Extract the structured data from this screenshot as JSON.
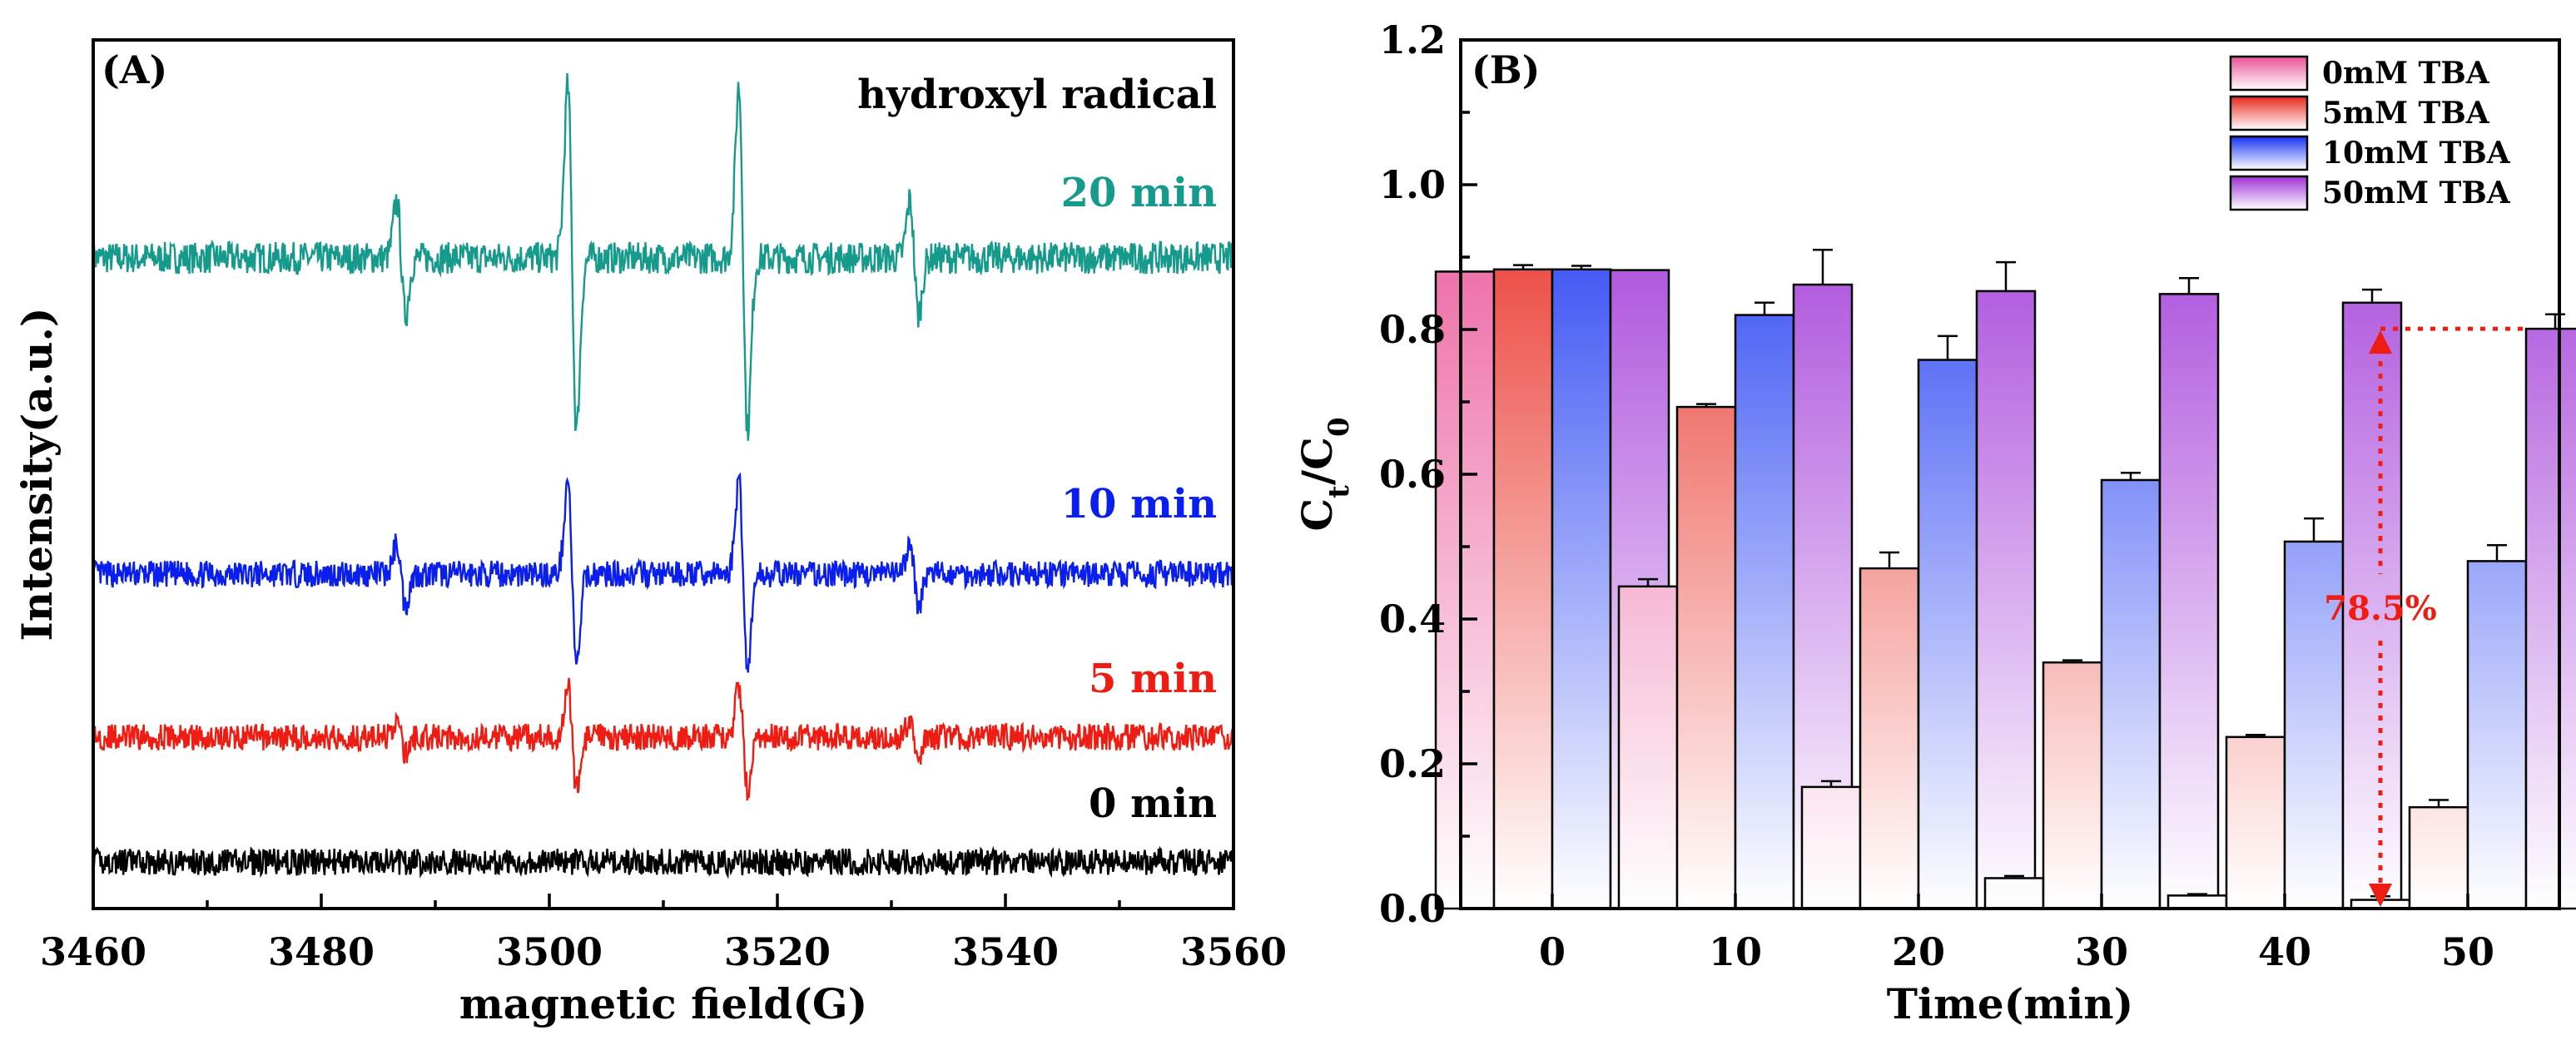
{
  "chart_data": [
    {
      "type": "line",
      "panel_label": "(A)",
      "annotation": "hydroxyl radical",
      "xlabel": "magnetic field(G)",
      "ylabel": "Intensity(a.u.)",
      "xlim": [
        3460,
        3560
      ],
      "x_ticks": [
        "3460",
        "3480",
        "3500",
        "3520",
        "3540",
        "3560"
      ],
      "peak_positions": [
        3487,
        3502,
        3517,
        3532
      ],
      "peak_pattern": [
        1,
        3,
        3,
        1
      ],
      "series": [
        {
          "name": "20 min",
          "color": "#169a8c",
          "amplitude": 1.0,
          "noise": 0.12,
          "seed": 7
        },
        {
          "name": "10 min",
          "color": "#0a1fee",
          "amplitude": 0.55,
          "noise": 0.1,
          "seed": 13
        },
        {
          "name": "5 min",
          "color": "#ee1c12",
          "amplitude": 0.3,
          "noise": 0.1,
          "seed": 29
        },
        {
          "name": "0 min",
          "color": "#000000",
          "amplitude": 0.0,
          "noise": 0.1,
          "seed": 41
        }
      ]
    },
    {
      "type": "bar",
      "panel_label": "(B)",
      "xlabel": "Time(min)",
      "ylabel_main": "C",
      "ylabel_sub_t": "t",
      "ylabel_slash": "/C",
      "ylabel_sub_0": "0",
      "ylim": [
        0,
        1.2
      ],
      "y_ticks": [
        "0.0",
        "0.2",
        "0.4",
        "0.6",
        "0.8",
        "1.0",
        "1.2"
      ],
      "categories": [
        "0",
        "10",
        "20",
        "30",
        "40",
        "50"
      ],
      "series": [
        {
          "name": "0mM TBA",
          "color": "#ea4f95",
          "values": [
            0.88,
            0.445,
            0.168,
            0.042,
            0.018,
            0.012
          ],
          "errors": [
            0.0,
            0.01,
            0.008,
            0.003,
            0.002,
            0.005
          ]
        },
        {
          "name": "5mM TBA",
          "color": "#e8261c",
          "values": [
            0.883,
            0.693,
            0.47,
            0.34,
            0.237,
            0.14
          ],
          "errors": [
            0.006,
            0.004,
            0.022,
            0.003,
            0.003,
            0.01
          ]
        },
        {
          "name": "10mM TBA",
          "color": "#1632f2",
          "values": [
            0.883,
            0.82,
            0.758,
            0.592,
            0.507,
            0.48
          ],
          "errors": [
            0.005,
            0.017,
            0.033,
            0.01,
            0.032,
            0.022
          ]
        },
        {
          "name": "50mM TBA",
          "color": "#9d2fd6",
          "values": [
            0.882,
            0.862,
            0.853,
            0.849,
            0.837,
            0.801
          ],
          "errors": [
            0.0,
            0.048,
            0.04,
            0.022,
            0.018,
            0.02
          ]
        }
      ],
      "legend_position": "top-right",
      "annotation": {
        "text": "78.5%",
        "color": "#ee1c12",
        "category": "50",
        "from": 0.801,
        "to": 0.0
      }
    }
  ]
}
